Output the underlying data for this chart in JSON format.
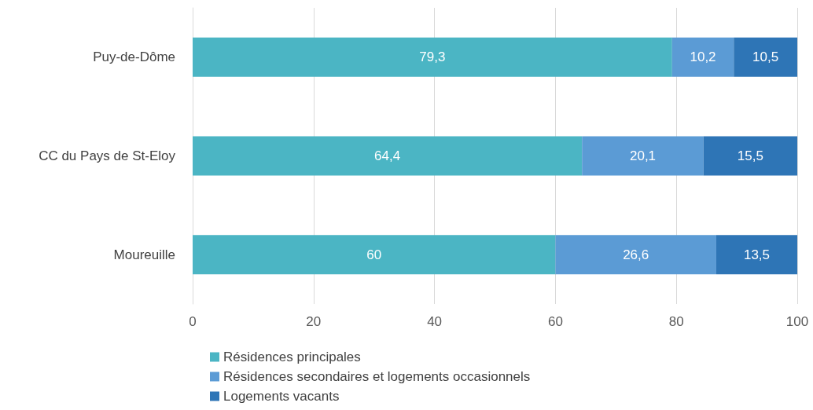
{
  "chart_data": {
    "type": "bar",
    "orientation": "horizontal",
    "stacked": true,
    "categories": [
      "Puy-de-Dôme",
      "CC du Pays de St-Eloy",
      "Moureuille"
    ],
    "series": [
      {
        "name": "Résidences principales",
        "color": "#4bb5c4",
        "values": [
          79.3,
          64.4,
          60
        ],
        "value_labels": [
          "79,3",
          "64,4",
          "60"
        ]
      },
      {
        "name": "Résidences secondaires et logements occasionnels",
        "color": "#5b9bd5",
        "values": [
          10.2,
          20.1,
          26.6
        ],
        "value_labels": [
          "10,2",
          "20,1",
          "26,6"
        ]
      },
      {
        "name": "Logements vacants",
        "color": "#2e75b6",
        "values": [
          10.5,
          15.5,
          13.5
        ],
        "value_labels": [
          "10,5",
          "15,5",
          "13,5"
        ]
      }
    ],
    "xlim": [
      0,
      100
    ],
    "xticks": [
      0,
      20,
      40,
      60,
      80,
      100
    ],
    "grid": "x",
    "legend": "bottom left"
  }
}
